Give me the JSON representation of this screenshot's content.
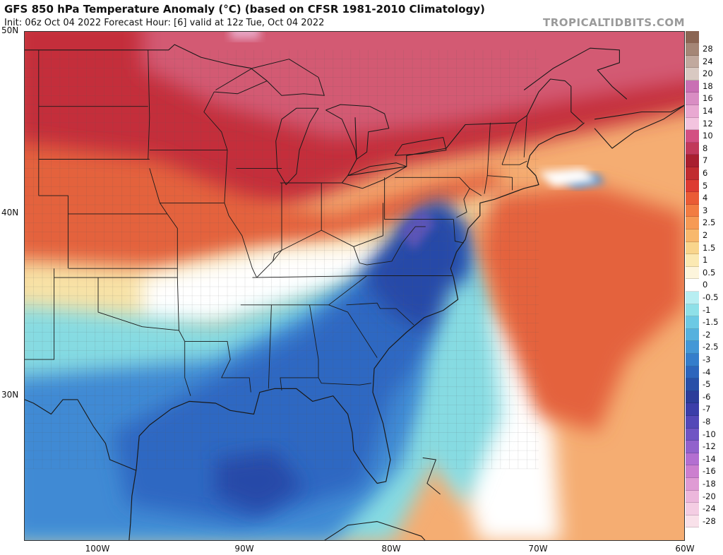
{
  "header": {
    "title": "GFS 850 hPa Temperature Anomaly (°C) (based on CFSR 1981-2010 Climatology)",
    "subtitle": "Init: 06z Oct 04 2022   Forecast Hour: [6]   valid at 12z Tue, Oct 04 2022",
    "brand": "TROPICALTIDBITS.COM"
  },
  "map": {
    "lat_labels": [
      "50N",
      "40N",
      "30N"
    ],
    "lon_labels": [
      "100W",
      "90W",
      "80W",
      "70W",
      "60W"
    ],
    "extent": {
      "lon_min": -105,
      "lon_max": -60,
      "lat_min": 22,
      "lat_max": 50
    },
    "colors": {
      "ocean_warm": "#f5ad72",
      "deep_red": "#c42f3a",
      "magenta_red": "#d35a73",
      "pink": "#e7a6c4",
      "orange_red": "#e4623e",
      "tan": "#f8e2a6",
      "white": "#ffffff",
      "light_blue": "#86dbe2",
      "mid_blue": "#3f8ad4",
      "blue": "#2d68c2",
      "navy": "#2849a8",
      "purple": "#5c54b8",
      "border": "#1a1a1a",
      "county": "#9a9a9a"
    }
  },
  "legend": {
    "top_swatch_color": "#8b6553",
    "entries": [
      {
        "label": "28",
        "color": "#a58676"
      },
      {
        "label": "24",
        "color": "#c1a99e"
      },
      {
        "label": "20",
        "color": "#d9c9c2"
      },
      {
        "label": "18",
        "color": "#c96fb4"
      },
      {
        "label": "16",
        "color": "#d98dc3"
      },
      {
        "label": "14",
        "color": "#e9a9d2"
      },
      {
        "label": "12",
        "color": "#f3c4df"
      },
      {
        "label": "10",
        "color": "#d34f82"
      },
      {
        "label": "8",
        "color": "#c1385a"
      },
      {
        "label": "7",
        "color": "#a91f2f"
      },
      {
        "label": "6",
        "color": "#c12c30"
      },
      {
        "label": "5",
        "color": "#dd3b32"
      },
      {
        "label": "4",
        "color": "#ea5b35"
      },
      {
        "label": "3",
        "color": "#f27c42"
      },
      {
        "label": "2.5",
        "color": "#f69a55"
      },
      {
        "label": "2",
        "color": "#f8b86c"
      },
      {
        "label": "1.5",
        "color": "#f9d58c"
      },
      {
        "label": "1",
        "color": "#fbe9b2"
      },
      {
        "label": "0.5",
        "color": "#fdf5dc"
      },
      {
        "label": "0",
        "color": "#ffffff"
      },
      {
        "label": "-0.5",
        "color": "#b8eef2"
      },
      {
        "label": "-1",
        "color": "#8ee0e8"
      },
      {
        "label": "-1.5",
        "color": "#6cc9e4"
      },
      {
        "label": "-2",
        "color": "#56b1de"
      },
      {
        "label": "-2.5",
        "color": "#4497d6"
      },
      {
        "label": "-3",
        "color": "#357dcb"
      },
      {
        "label": "-4",
        "color": "#2d65bc"
      },
      {
        "label": "-5",
        "color": "#284fa8"
      },
      {
        "label": "-6",
        "color": "#2b3d9a"
      },
      {
        "label": "-7",
        "color": "#3b3ea9"
      },
      {
        "label": "-8",
        "color": "#5448b8"
      },
      {
        "label": "-10",
        "color": "#6f55c4"
      },
      {
        "label": "-12",
        "color": "#9162cc"
      },
      {
        "label": "-14",
        "color": "#b36fd1"
      },
      {
        "label": "-16",
        "color": "#cc7fcf"
      },
      {
        "label": "-18",
        "color": "#df9bd4"
      },
      {
        "label": "-20",
        "color": "#ecb7dc"
      },
      {
        "label": "-24",
        "color": "#f4cde3"
      },
      {
        "label": "-28",
        "color": "#f9e1ea"
      }
    ]
  }
}
